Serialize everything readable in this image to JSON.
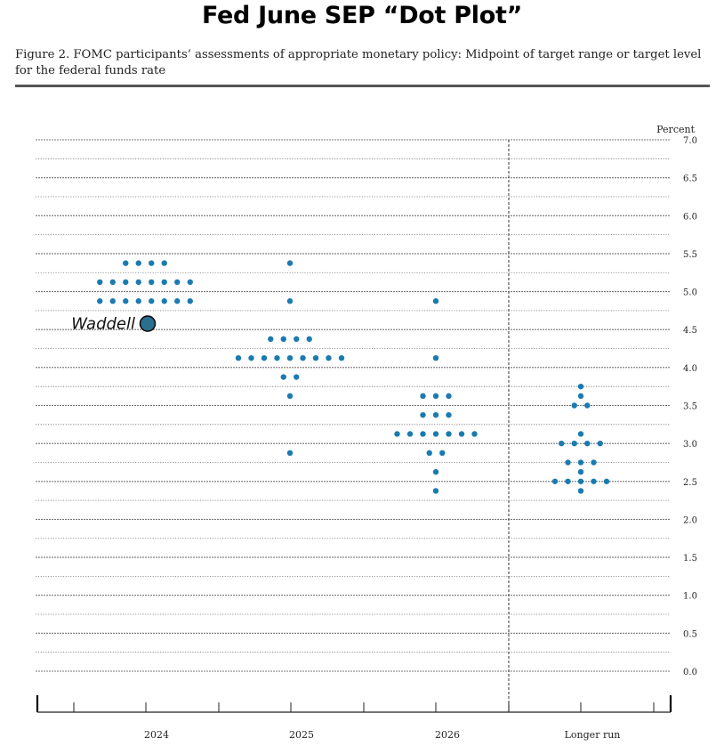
{
  "header": {
    "title": "Fed June SEP “Dot Plot”",
    "caption": "Figure 2.  FOMC participants’ assessments of appropriate monetary policy: Midpoint of target range or target level for the federal funds rate"
  },
  "chart_data": {
    "type": "scatter",
    "ylabel": "Percent",
    "ylim": [
      0,
      7
    ],
    "yticks": [
      "0.0",
      "0.5",
      "1.0",
      "1.5",
      "2.0",
      "2.5",
      "3.0",
      "3.5",
      "4.0",
      "4.5",
      "5.0",
      "5.5",
      "6.0",
      "6.5",
      "7.0"
    ],
    "categories": [
      "2024",
      "2025",
      "2026",
      "Longer run"
    ],
    "grid": true,
    "colors": {
      "dot": "#1a7bb0",
      "annotation_dot": "#2a6f8e",
      "grid": "#777777"
    },
    "dots": [
      {
        "category": "2024",
        "rows": [
          [
            5.375,
            4
          ],
          [
            5.125,
            8
          ],
          [
            4.875,
            8
          ]
        ]
      },
      {
        "category": "2025",
        "rows": [
          [
            5.375,
            1
          ],
          [
            4.875,
            1
          ],
          [
            4.375,
            4
          ],
          [
            4.125,
            9
          ],
          [
            3.875,
            2
          ],
          [
            3.625,
            1
          ],
          [
            2.875,
            1
          ]
        ]
      },
      {
        "category": "2026",
        "rows": [
          [
            4.875,
            1
          ],
          [
            4.125,
            1
          ],
          [
            3.625,
            3
          ],
          [
            3.375,
            3
          ],
          [
            3.125,
            7
          ],
          [
            2.875,
            2
          ],
          [
            2.625,
            1
          ],
          [
            2.375,
            1
          ]
        ]
      },
      {
        "category": "Longer run",
        "rows": [
          [
            3.75,
            1
          ],
          [
            3.625,
            1
          ],
          [
            3.5,
            2
          ],
          [
            3.125,
            1
          ],
          [
            3.0,
            4
          ],
          [
            2.75,
            3
          ],
          [
            2.625,
            1
          ],
          [
            2.5,
            5
          ],
          [
            2.375,
            1
          ]
        ]
      }
    ],
    "annotation": {
      "label": "Waddell",
      "category": "2024",
      "value": 4.625
    }
  }
}
